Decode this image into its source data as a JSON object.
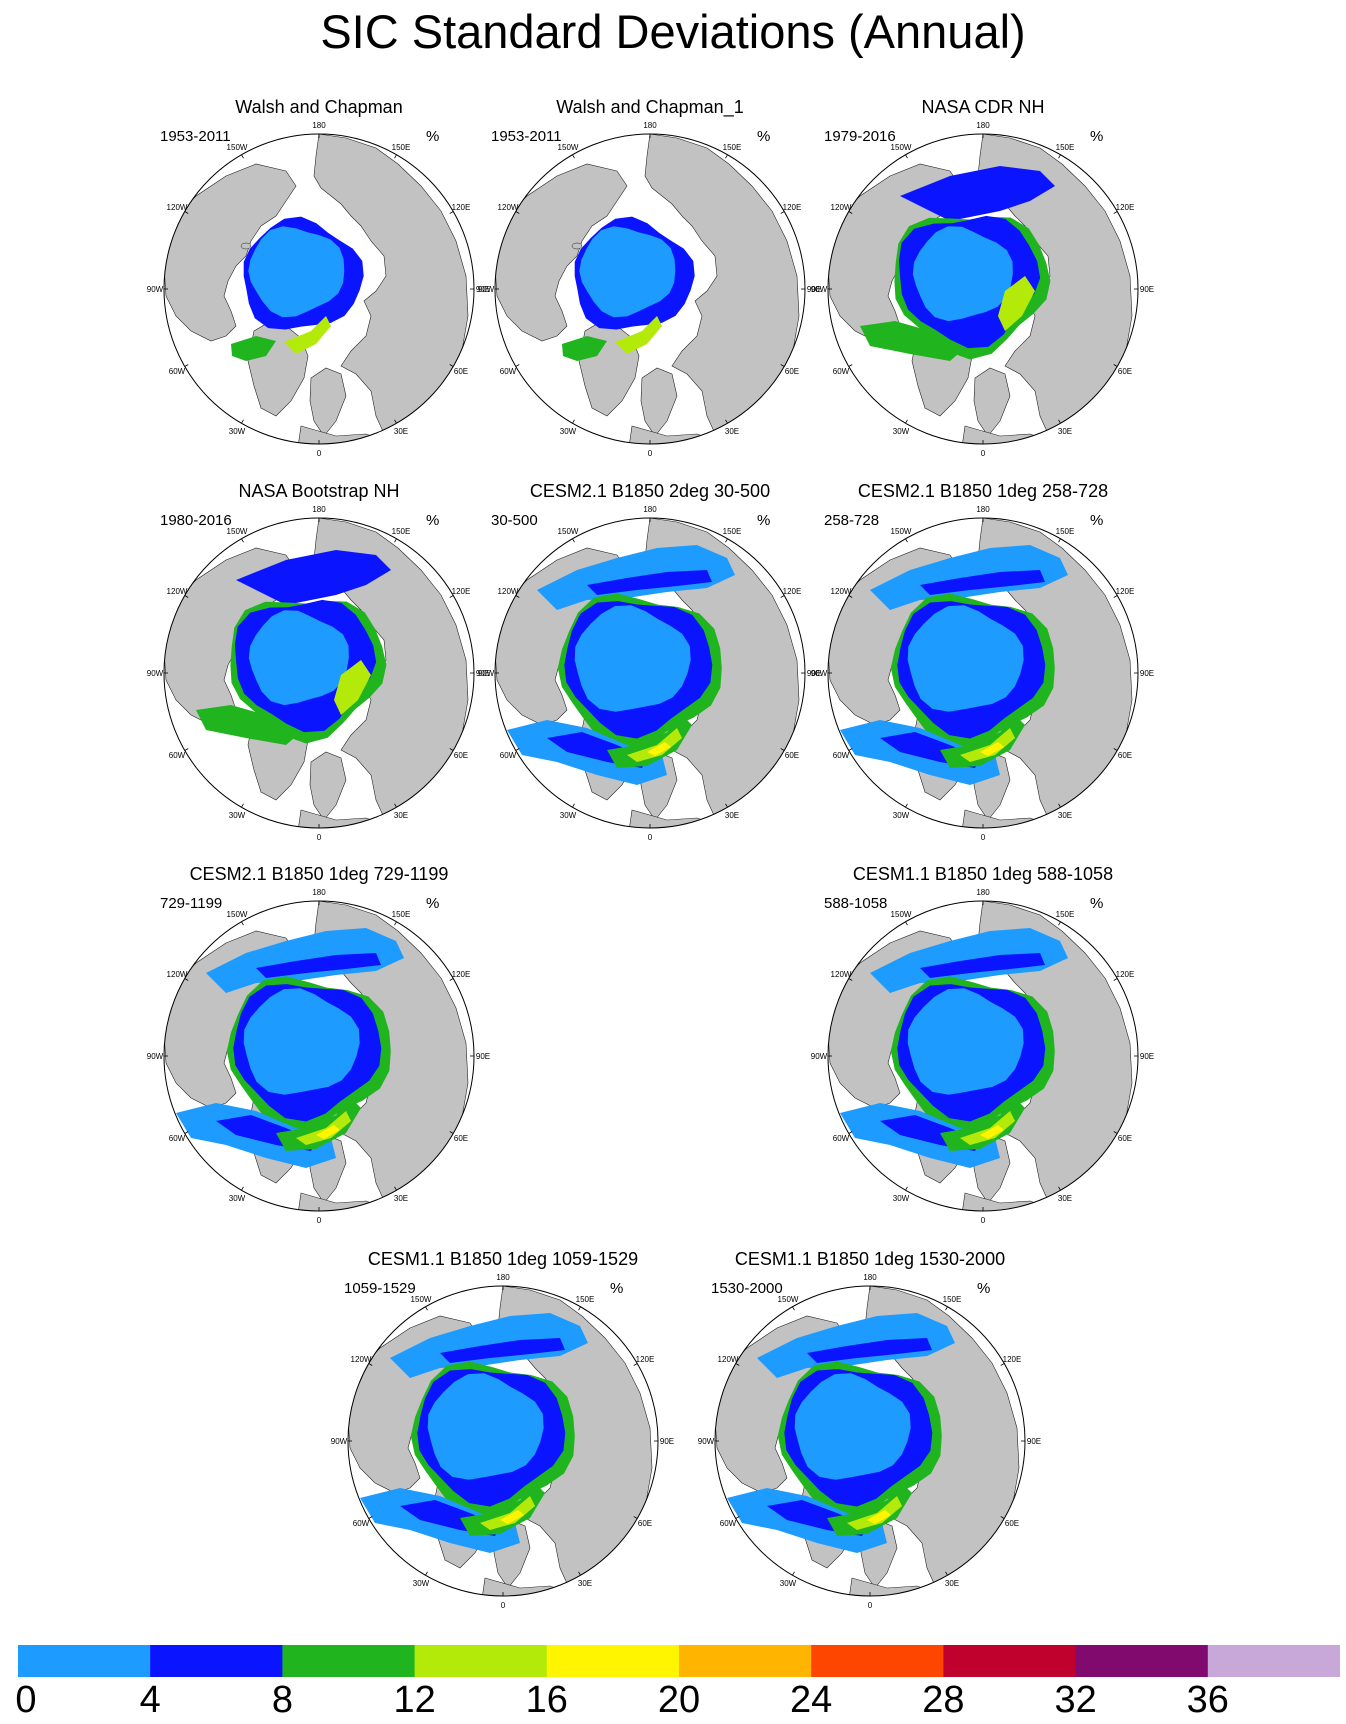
{
  "title": "SIC Standard Deviations (Annual)",
  "units": "%",
  "longitude_labels": [
    "180",
    "150E",
    "120E",
    "90E",
    "60E",
    "30E",
    "0",
    "30W",
    "60W",
    "90W",
    "120W",
    "150W"
  ],
  "panels": [
    {
      "title": "Walsh and Chapman",
      "period": "1953-2011",
      "pattern": "walsh"
    },
    {
      "title": "Walsh and Chapman_1",
      "period": "1953-2011",
      "pattern": "walsh"
    },
    {
      "title": "NASA CDR NH",
      "period": "1979-2016",
      "pattern": "obs"
    },
    {
      "title": "NASA Bootstrap NH",
      "period": "1980-2016",
      "pattern": "obs"
    },
    {
      "title": "CESM2.1 B1850 2deg 30-500",
      "period": "30-500",
      "pattern": "model"
    },
    {
      "title": "CESM2.1 B1850 1deg 258-728",
      "period": "258-728",
      "pattern": "model"
    },
    {
      "title": "CESM2.1 B1850 1deg 729-1199",
      "period": "729-1199",
      "pattern": "model"
    },
    {
      "title": "CESM1.1 B1850 1deg 588-1058",
      "period": "588-1058",
      "pattern": "model"
    },
    {
      "title": "CESM1.1 B1850 1deg 1059-1529",
      "period": "1059-1529",
      "pattern": "model"
    },
    {
      "title": "CESM1.1 B1850 1deg 1530-2000",
      "period": "1530-2000",
      "pattern": "model"
    }
  ],
  "colorbar": {
    "colors": [
      "#1e9bff",
      "#0a14ff",
      "#20b41e",
      "#b4ea0a",
      "#fff500",
      "#ffb400",
      "#ff4600",
      "#c0002d",
      "#800a6e",
      "#c8a8d8"
    ],
    "labels": [
      "0",
      "4",
      "8",
      "12",
      "16",
      "20",
      "24",
      "28",
      "32",
      "36"
    ]
  },
  "land_color": "#c2c2c2",
  "ocean_color": "#ffffff"
}
